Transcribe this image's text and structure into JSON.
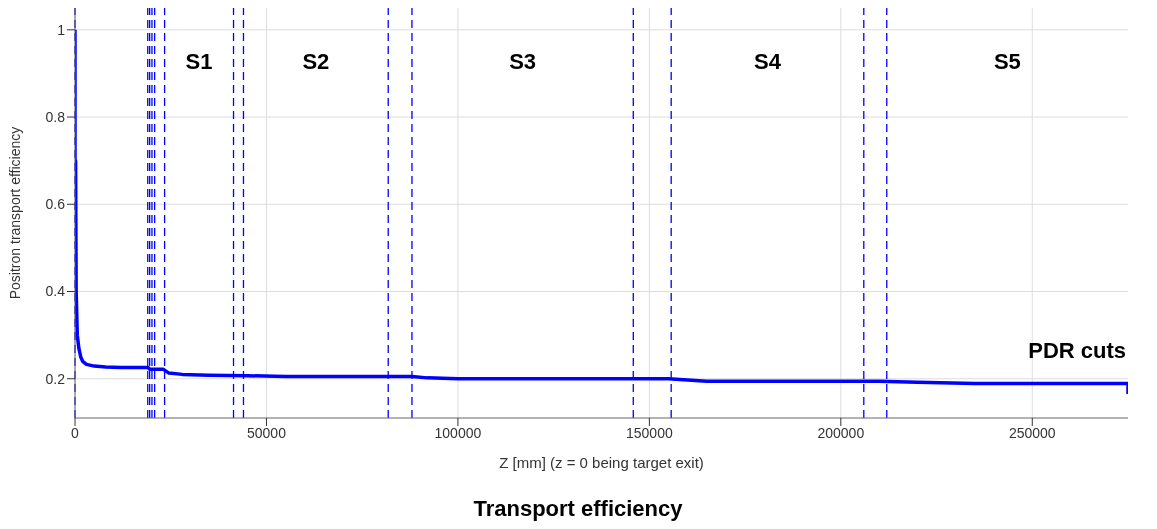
{
  "chart_data": {
    "type": "line",
    "title": "Transport efficiency",
    "xlabel": "Z [mm] (z = 0 being target exit)",
    "ylabel": "Positron transport efficiency",
    "xlim": [
      0,
      275000
    ],
    "xticks": [
      0,
      50000,
      100000,
      150000,
      200000,
      250000
    ],
    "ylim": [
      0.11,
      1.05
    ],
    "yticks": [
      0.2,
      0.4,
      0.6,
      0.8,
      1
    ],
    "grid": true,
    "marker": "none",
    "line_style": "solid",
    "series": [
      {
        "color": "#0000ff",
        "x": [
          0,
          0,
          150,
          300,
          600,
          1000,
          1500,
          2000,
          3000,
          5000,
          8000,
          12000,
          19000,
          19500,
          23000,
          24500,
          28000,
          35000,
          45000,
          55000,
          88000,
          92000,
          100000,
          155000,
          158000,
          165000,
          190000,
          210000,
          220000,
          235000,
          260000,
          275000,
          275000
        ],
        "values": [
          1,
          0.7,
          0.7,
          0.4,
          0.3,
          0.27,
          0.25,
          0.24,
          0.233,
          0.229,
          0.227,
          0.226,
          0.226,
          0.222,
          0.222,
          0.213,
          0.21,
          0.208,
          0.207,
          0.205,
          0.205,
          0.202,
          0.2,
          0.2,
          0.198,
          0.194,
          0.194,
          0.194,
          0.192,
          0.189,
          0.189,
          0.189,
          0.165
        ]
      }
    ],
    "ref_lines": [
      {
        "axis": "x",
        "value": 0,
        "color": "#0000ff",
        "line_style": "dashed"
      },
      {
        "axis": "x",
        "value": 19000,
        "color": "#0000ff",
        "line_style": "dashed"
      },
      {
        "axis": "x",
        "value": 19500,
        "color": "#0000ff",
        "line_style": "dashed"
      },
      {
        "axis": "x",
        "value": 20100,
        "color": "#0000ff",
        "line_style": "dashed"
      },
      {
        "axis": "x",
        "value": 20800,
        "color": "#0000ff",
        "line_style": "dashed"
      },
      {
        "axis": "x",
        "value": 23400,
        "color": "#0000ff",
        "line_style": "dashed"
      },
      {
        "axis": "x",
        "value": 41400,
        "color": "#0000ff",
        "line_style": "dashed"
      },
      {
        "axis": "x",
        "value": 44000,
        "color": "#0000ff",
        "line_style": "dashed"
      },
      {
        "axis": "x",
        "value": 81800,
        "color": "#0000ff",
        "line_style": "dashed"
      },
      {
        "axis": "x",
        "value": 88000,
        "color": "#0000ff",
        "line_style": "dashed"
      },
      {
        "axis": "x",
        "value": 145800,
        "color": "#0000ff",
        "line_style": "dashed"
      },
      {
        "axis": "x",
        "value": 155700,
        "color": "#0000ff",
        "line_style": "dashed"
      },
      {
        "axis": "x",
        "value": 206000,
        "color": "#0000ff",
        "line_style": "dashed"
      },
      {
        "axis": "x",
        "value": 212000,
        "color": "#0000ff",
        "line_style": "dashed"
      }
    ],
    "annotations": [
      "S1",
      "S2",
      "S3",
      "S4",
      "S5",
      "PDR cuts"
    ]
  }
}
